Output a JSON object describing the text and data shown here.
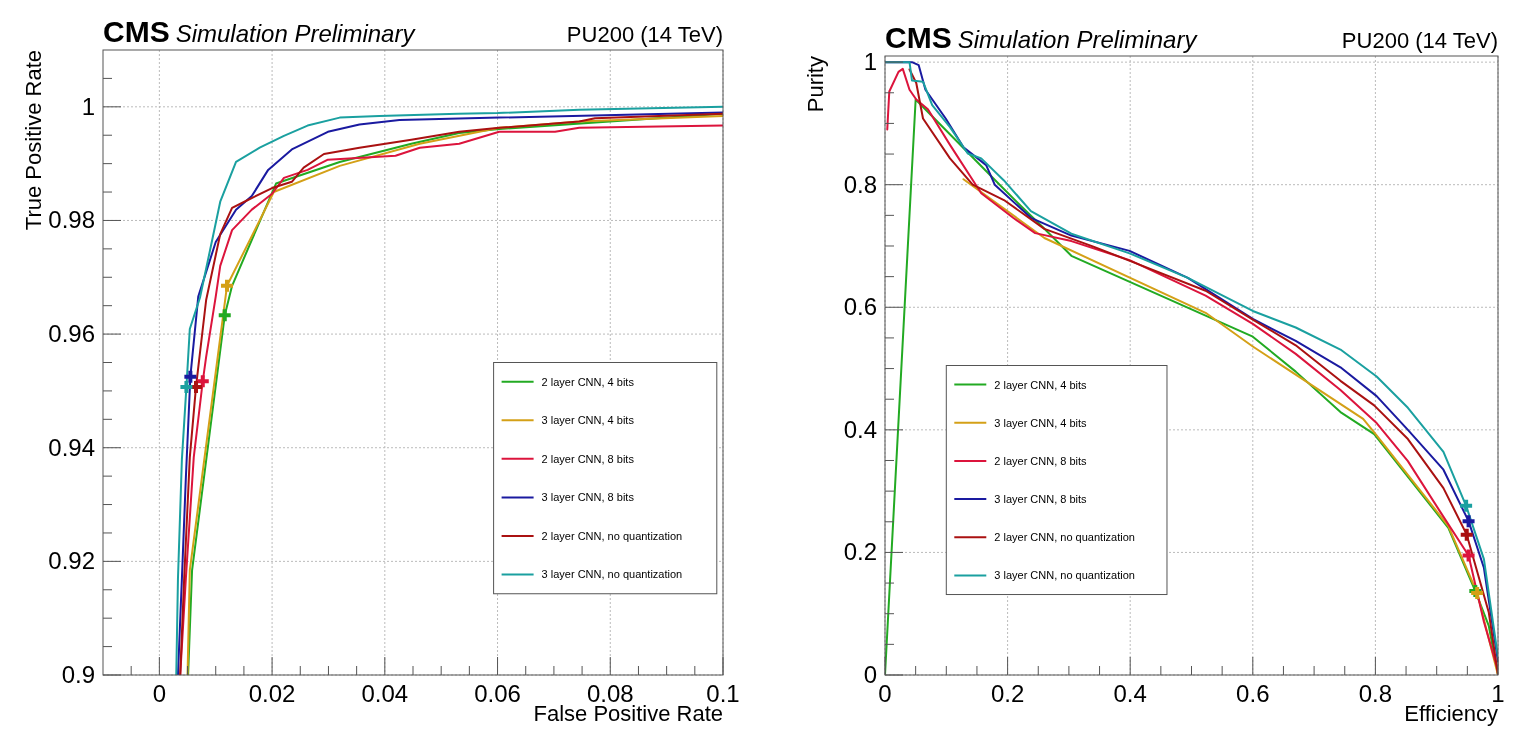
{
  "chart_data": [
    {
      "type": "line",
      "title": "CMS",
      "subtitle": "Simulation Preliminary",
      "annotations": [
        "PU200 (14 TeV)"
      ],
      "xlabel": "False Positive Rate",
      "ylabel": "True Positive Rate",
      "xlim": [
        -0.01,
        0.1
      ],
      "ylim": [
        0.9,
        1.01
      ],
      "xticks": [
        {
          "value": -0.005,
          "label": null
        },
        0,
        {
          "value": 0.005,
          "label": null
        },
        {
          "value": 0.01,
          "label": null
        },
        {
          "value": 0.015,
          "label": null
        },
        0.02,
        {
          "value": 0.025,
          "label": null
        },
        {
          "value": 0.03,
          "label": null
        },
        {
          "value": 0.035,
          "label": null
        },
        0.04,
        {
          "value": 0.045,
          "label": null
        },
        {
          "value": 0.05,
          "label": null
        },
        {
          "value": 0.055,
          "label": null
        },
        0.06,
        {
          "value": 0.065,
          "label": null
        },
        {
          "value": 0.07,
          "label": null
        },
        {
          "value": 0.075,
          "label": null
        },
        0.08,
        {
          "value": 0.085,
          "label": null
        },
        {
          "value": 0.09,
          "label": null
        },
        {
          "value": 0.095,
          "label": null
        },
        0.1
      ],
      "yticks": [
        0.9,
        {
          "value": 0.905,
          "label": null
        },
        {
          "value": 0.91,
          "label": null
        },
        {
          "value": 0.915,
          "label": null
        },
        0.92,
        {
          "value": 0.925,
          "label": null
        },
        {
          "value": 0.93,
          "label": null
        },
        {
          "value": 0.935,
          "label": null
        },
        0.94,
        {
          "value": 0.945,
          "label": null
        },
        {
          "value": 0.95,
          "label": null
        },
        {
          "value": 0.955,
          "label": null
        },
        0.96,
        {
          "value": 0.965,
          "label": null
        },
        {
          "value": 0.97,
          "label": null
        },
        {
          "value": 0.975,
          "label": null
        },
        0.98,
        {
          "value": 0.985,
          "label": null
        },
        {
          "value": 0.99,
          "label": null
        },
        {
          "value": 0.995,
          "label": null
        },
        1,
        {
          "value": 1.005,
          "label": null
        }
      ],
      "grid": true,
      "legend": "right",
      "series": [
        {
          "name": "2 layer CNN, 4 bits",
          "color": "#22aa22",
          "x": [
            0.0051,
            0.0058,
            0.0116,
            0.0129,
            0.0207,
            0.032,
            0.0447,
            0.0532,
            0.0603,
            0.1
          ],
          "values": [
            0.9,
            0.9184,
            0.9633,
            0.9685,
            0.9865,
            0.9903,
            0.9935,
            0.9954,
            0.9961,
            0.9988
          ]
        },
        {
          "name": "3 layer CNN, 4 bits",
          "color": "#d4a017",
          "x": [
            0.005,
            0.0054,
            0.012,
            0.0203,
            0.032,
            0.0462,
            0.0603,
            0.0745,
            0.1
          ],
          "values": [
            0.9,
            0.9184,
            0.9685,
            0.985,
            0.9896,
            0.9935,
            0.9963,
            0.9974,
            0.9984
          ]
        },
        {
          "name": "2 layer CNN, 8 bits",
          "color": "#dc143c",
          "x": [
            0.0037,
            0.0047,
            0.0061,
            0.0077,
            0.0083,
            0.01,
            0.0108,
            0.0129,
            0.0164,
            0.02,
            0.0221,
            0.0263,
            0.0299,
            0.0419,
            0.0462,
            0.0532,
            0.0603,
            0.0702,
            0.0745,
            0.1
          ],
          "values": [
            0.9,
            0.917,
            0.9383,
            0.9517,
            0.956,
            0.9666,
            0.972,
            0.9783,
            0.9819,
            0.9847,
            0.9875,
            0.9889,
            0.9907,
            0.9914,
            0.9928,
            0.9935,
            0.9956,
            0.9956,
            0.9963,
            0.9967
          ]
        },
        {
          "name": "3 layer CNN, 8 bits",
          "color": "#1a1aa0",
          "x": [
            0.0033,
            0.004,
            0.0047,
            0.0055,
            0.0069,
            0.01,
            0.0136,
            0.0164,
            0.0193,
            0.0235,
            0.0299,
            0.0355,
            0.0426,
            0.0603,
            0.1
          ],
          "values": [
            0.9,
            0.917,
            0.9347,
            0.9525,
            0.9666,
            0.9762,
            0.9819,
            0.9843,
            0.9889,
            0.9925,
            0.9956,
            0.9969,
            0.9977,
            0.9981,
            0.999
          ]
        },
        {
          "name": "2 layer CNN, no quantization",
          "color": "#aa1111",
          "x": [
            0.0037,
            0.0044,
            0.0054,
            0.0065,
            0.0083,
            0.0108,
            0.0129,
            0.0157,
            0.02,
            0.0235,
            0.0256,
            0.0292,
            0.0355,
            0.0447,
            0.0532,
            0.0603,
            0.0745,
            0.0773,
            0.1
          ],
          "values": [
            0.9,
            0.917,
            0.9383,
            0.9507,
            0.966,
            0.9776,
            0.9822,
            0.9836,
            0.9857,
            0.9868,
            0.9893,
            0.9917,
            0.9928,
            0.9942,
            0.9956,
            0.9963,
            0.9974,
            0.998,
            0.9988
          ]
        },
        {
          "name": "3 layer CNN, no quantization",
          "color": "#1aa0a0",
          "x": [
            0.003,
            0.0033,
            0.004,
            0.0048,
            0.0054,
            0.0072,
            0.009,
            0.0108,
            0.0136,
            0.0178,
            0.0221,
            0.0263,
            0.032,
            0.039,
            0.053,
            0.06,
            0.0745,
            0.1
          ],
          "values": [
            0.9,
            0.917,
            0.938,
            0.9507,
            0.9609,
            0.9664,
            0.9748,
            0.9833,
            0.9903,
            0.9928,
            0.9949,
            0.9967,
            0.9981,
            0.9984,
            0.9988,
            0.9989,
            0.9995,
            1.0
          ]
        },
        {
          "type": "scatter",
          "marker": "cross",
          "color": "#22aa22",
          "x": [
            0.0116
          ],
          "values": [
            0.9633
          ]
        },
        {
          "type": "scatter",
          "marker": "cross",
          "color": "#d4a017",
          "x": [
            0.012
          ],
          "values": [
            0.9685
          ]
        },
        {
          "type": "scatter",
          "marker": "cross",
          "color": "#dc143c",
          "x": [
            0.0077
          ],
          "values": [
            0.9517
          ]
        },
        {
          "type": "scatter",
          "marker": "cross",
          "color": "#1a1aa0",
          "x": [
            0.0055
          ],
          "values": [
            0.9525
          ]
        },
        {
          "type": "scatter",
          "marker": "cross",
          "color": "#aa1111",
          "x": [
            0.0065
          ],
          "values": [
            0.9507
          ]
        },
        {
          "type": "scatter",
          "marker": "cross",
          "color": "#1aa0a0",
          "x": [
            0.0048
          ],
          "values": [
            0.9507
          ]
        }
      ]
    },
    {
      "type": "line",
      "title": "CMS",
      "subtitle": "Simulation Preliminary",
      "annotations": [
        "PU200 (14 TeV)"
      ],
      "xlabel": "Efficiency",
      "ylabel": "Purity",
      "xlim": [
        0,
        1
      ],
      "ylim": [
        0,
        1.01
      ],
      "xticks": [
        0,
        {
          "value": 0.05,
          "label": null
        },
        {
          "value": 0.1,
          "label": null
        },
        {
          "value": 0.15,
          "label": null
        },
        0.2,
        {
          "value": 0.25,
          "label": null
        },
        {
          "value": 0.3,
          "label": null
        },
        {
          "value": 0.35,
          "label": null
        },
        0.4,
        {
          "value": 0.45,
          "label": null
        },
        {
          "value": 0.5,
          "label": null
        },
        {
          "value": 0.55,
          "label": null
        },
        0.6,
        {
          "value": 0.65,
          "label": null
        },
        {
          "value": 0.7,
          "label": null
        },
        {
          "value": 0.75,
          "label": null
        },
        0.8,
        {
          "value": 0.85,
          "label": null
        },
        {
          "value": 0.9,
          "label": null
        },
        {
          "value": 0.95,
          "label": null
        },
        1
      ],
      "yticks": [
        0,
        {
          "value": 0.05,
          "label": null
        },
        {
          "value": 0.1,
          "label": null
        },
        {
          "value": 0.15,
          "label": null
        },
        0.2,
        {
          "value": 0.25,
          "label": null
        },
        {
          "value": 0.3,
          "label": null
        },
        {
          "value": 0.35,
          "label": null
        },
        0.4,
        {
          "value": 0.45,
          "label": null
        },
        {
          "value": 0.5,
          "label": null
        },
        {
          "value": 0.55,
          "label": null
        },
        0.6,
        {
          "value": 0.65,
          "label": null
        },
        {
          "value": 0.7,
          "label": null
        },
        {
          "value": 0.75,
          "label": null
        },
        0.8,
        {
          "value": 0.85,
          "label": null
        },
        {
          "value": 0.9,
          "label": null
        },
        {
          "value": 0.95,
          "label": null
        },
        1
      ],
      "grid": true,
      "legend": "bottom left",
      "series": [
        {
          "name": "2 layer CNN, 4 bits",
          "color": "#22aa22",
          "x": [
            0,
            0.05,
            0.187,
            0.223,
            0.26,
            0.304,
            0.6,
            0.67,
            0.743,
            0.798,
            0.919,
            0.963,
            0.985,
            1.0
          ],
          "values": [
            0,
            0.939,
            0.8,
            0.764,
            0.728,
            0.684,
            0.552,
            0.495,
            0.429,
            0.393,
            0.24,
            0.137,
            0.08,
            0.0
          ]
        },
        {
          "name": "3 layer CNN, 4 bits",
          "color": "#d4a017",
          "x": [
            0.128,
            0.26,
            0.523,
            0.6,
            0.78,
            0.802,
            0.919,
            0.966,
            1.0
          ],
          "values": [
            0.809,
            0.713,
            0.591,
            0.536,
            0.418,
            0.391,
            0.243,
            0.134,
            0.0
          ]
        },
        {
          "name": "2 layer CNN, 8 bits",
          "color": "#dc143c",
          "x": [
            0.0037,
            0.007,
            0.022,
            0.029,
            0.04,
            0.051,
            0.07,
            0.106,
            0.157,
            0.209,
            0.245,
            0.304,
            0.399,
            0.523,
            0.6,
            0.67,
            0.743,
            0.802,
            0.853,
            0.904,
            0.952,
            0.977,
            1.0
          ],
          "values": [
            0.89,
            0.952,
            0.984,
            0.989,
            0.955,
            0.939,
            0.923,
            0.865,
            0.786,
            0.746,
            0.721,
            0.708,
            0.677,
            0.619,
            0.573,
            0.524,
            0.465,
            0.411,
            0.349,
            0.269,
            0.195,
            0.087,
            0.007
          ]
        },
        {
          "name": "3 layer CNN, 8 bits",
          "color": "#1a1aa0",
          "x": [
            0,
            0.044,
            0.055,
            0.066,
            0.099,
            0.128,
            0.165,
            0.179,
            0.238,
            0.304,
            0.399,
            0.494,
            0.6,
            0.67,
            0.743,
            0.802,
            0.853,
            0.911,
            0.952,
            0.977,
            1.0
          ],
          "values": [
            1,
            1,
            0.995,
            0.955,
            0.908,
            0.861,
            0.832,
            0.8,
            0.746,
            0.717,
            0.692,
            0.648,
            0.581,
            0.545,
            0.502,
            0.455,
            0.4,
            0.335,
            0.251,
            0.175,
            0.022
          ]
        },
        {
          "name": "2 layer CNN, no quantization",
          "color": "#aa1111",
          "x": [
            0.04,
            0.051,
            0.062,
            0.106,
            0.143,
            0.194,
            0.26,
            0.34,
            0.414,
            0.523,
            0.6,
            0.67,
            0.743,
            0.798,
            0.853,
            0.911,
            0.949,
            0.985,
            1.0
          ],
          "values": [
            0.988,
            0.966,
            0.908,
            0.843,
            0.8,
            0.775,
            0.728,
            0.699,
            0.67,
            0.627,
            0.58,
            0.538,
            0.48,
            0.44,
            0.385,
            0.305,
            0.229,
            0.102,
            0.0
          ]
        },
        {
          "name": "3 layer CNN, no quantization",
          "color": "#1aa0a0",
          "x": [
            0,
            0.04,
            0.044,
            0.062,
            0.077,
            0.106,
            0.135,
            0.157,
            0.194,
            0.238,
            0.304,
            0.399,
            0.494,
            0.6,
            0.67,
            0.743,
            0.802,
            0.853,
            0.911,
            0.948,
            0.977,
            1.0
          ],
          "values": [
            1,
            1,
            0.97,
            0.968,
            0.93,
            0.894,
            0.851,
            0.843,
            0.807,
            0.757,
            0.72,
            0.688,
            0.648,
            0.594,
            0.567,
            0.531,
            0.487,
            0.436,
            0.364,
            0.276,
            0.189,
            0.029
          ]
        },
        {
          "type": "scatter",
          "marker": "cross",
          "color": "#22aa22",
          "x": [
            0.963
          ],
          "values": [
            0.137
          ]
        },
        {
          "type": "scatter",
          "marker": "cross",
          "color": "#d4a017",
          "x": [
            0.966
          ],
          "values": [
            0.134
          ]
        },
        {
          "type": "scatter",
          "marker": "cross",
          "color": "#dc143c",
          "x": [
            0.952
          ],
          "values": [
            0.195
          ]
        },
        {
          "type": "scatter",
          "marker": "cross",
          "color": "#1a1aa0",
          "x": [
            0.952
          ],
          "values": [
            0.251
          ]
        },
        {
          "type": "scatter",
          "marker": "cross",
          "color": "#aa1111",
          "x": [
            0.949
          ],
          "values": [
            0.229
          ]
        },
        {
          "type": "scatter",
          "marker": "cross",
          "color": "#1aa0a0",
          "x": [
            0.948
          ],
          "values": [
            0.276
          ]
        }
      ]
    }
  ]
}
